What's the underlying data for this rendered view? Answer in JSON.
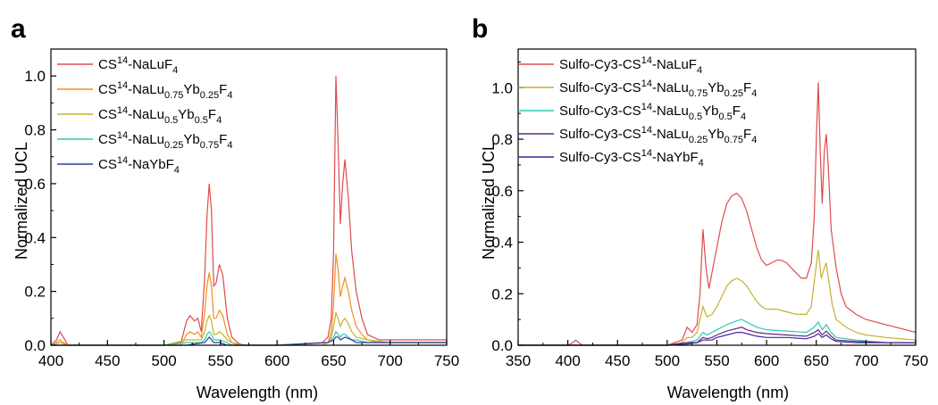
{
  "chart_data": [
    {
      "type": "line",
      "panel_label": "a",
      "xlabel": "Wavelength (nm)",
      "ylabel": "Normalized UCL",
      "xlim": [
        400,
        750
      ],
      "ylim": [
        0,
        1.1
      ],
      "xticks": [
        "400",
        "450",
        "500",
        "550",
        "600",
        "650",
        "700",
        "750"
      ],
      "yticks": [
        "0.0",
        "0.2",
        "0.4",
        "0.6",
        "0.8",
        "1.0"
      ],
      "legend_position": "top-left",
      "series": [
        {
          "name": "CS14-NaLuF4",
          "legend": {
            "pre": "CS",
            "sup1": "14",
            "mid": "-NaLuF",
            "sub1": "4",
            "mid2": "",
            "sub2": "",
            "post": ""
          },
          "color": "#e04b4b",
          "x": [
            400,
            405,
            408,
            411,
            415,
            450,
            500,
            515,
            520,
            523,
            527,
            530,
            533,
            536,
            538,
            540,
            542,
            544,
            546,
            549,
            552,
            556,
            560,
            565,
            570,
            600,
            640,
            645,
            648,
            650,
            652,
            654,
            656,
            658,
            660,
            663,
            666,
            670,
            675,
            680,
            690,
            700,
            720,
            750
          ],
          "y": [
            0.0,
            0.02,
            0.05,
            0.03,
            0.0,
            0.0,
            0.0,
            0.01,
            0.09,
            0.11,
            0.09,
            0.1,
            0.05,
            0.25,
            0.48,
            0.6,
            0.5,
            0.22,
            0.23,
            0.3,
            0.26,
            0.1,
            0.03,
            0.01,
            0.0,
            0.0,
            0.01,
            0.03,
            0.1,
            0.35,
            1.0,
            0.75,
            0.45,
            0.6,
            0.69,
            0.55,
            0.35,
            0.2,
            0.1,
            0.04,
            0.02,
            0.02,
            0.02,
            0.02
          ]
        },
        {
          "name": "CS14-NaLu0.75Yb0.25F4",
          "legend": {
            "pre": "CS",
            "sup1": "14",
            "mid": "-NaLu",
            "sub1": "0.75",
            "mid2": "Yb",
            "sub2": "0.25",
            "post": "F4"
          },
          "color": "#f0901e",
          "x": [
            400,
            405,
            408,
            411,
            415,
            450,
            500,
            515,
            520,
            523,
            527,
            530,
            533,
            536,
            538,
            540,
            542,
            544,
            546,
            549,
            552,
            556,
            560,
            565,
            570,
            600,
            640,
            645,
            648,
            650,
            652,
            654,
            656,
            658,
            660,
            663,
            666,
            670,
            675,
            680,
            690,
            700,
            720,
            750
          ],
          "y": [
            0.0,
            0.01,
            0.02,
            0.01,
            0.0,
            0.0,
            0.0,
            0.0,
            0.04,
            0.05,
            0.04,
            0.05,
            0.03,
            0.12,
            0.22,
            0.27,
            0.22,
            0.1,
            0.1,
            0.13,
            0.11,
            0.04,
            0.01,
            0.0,
            0.0,
            0.0,
            0.0,
            0.01,
            0.05,
            0.15,
            0.34,
            0.28,
            0.18,
            0.22,
            0.25,
            0.2,
            0.13,
            0.07,
            0.04,
            0.02,
            0.01,
            0.01,
            0.01,
            0.01
          ]
        },
        {
          "name": "CS14-NaLu0.5Yb0.5F4",
          "legend": {
            "pre": "CS",
            "sup1": "14",
            "mid": "-NaLu",
            "sub1": "0.5",
            "mid2": "Yb",
            "sub2": "0.5",
            "post": "F4"
          },
          "color": "#c4b12e",
          "x": [
            400,
            408,
            415,
            450,
            500,
            520,
            527,
            533,
            536,
            538,
            540,
            542,
            544,
            546,
            549,
            552,
            556,
            560,
            570,
            600,
            645,
            648,
            650,
            652,
            654,
            656,
            658,
            660,
            663,
            666,
            670,
            680,
            700,
            750
          ],
          "y": [
            0.0,
            0.01,
            0.0,
            0.0,
            0.0,
            0.02,
            0.02,
            0.02,
            0.05,
            0.09,
            0.11,
            0.09,
            0.04,
            0.04,
            0.05,
            0.04,
            0.02,
            0.01,
            0.0,
            0.0,
            0.01,
            0.03,
            0.07,
            0.12,
            0.1,
            0.07,
            0.09,
            0.1,
            0.08,
            0.05,
            0.03,
            0.02,
            0.01,
            0.01
          ]
        },
        {
          "name": "CS14-NaLu0.25Yb0.75F4",
          "legend": {
            "pre": "CS",
            "sup1": "14",
            "mid": "-NaLu",
            "sub1": "0.25",
            "mid2": "Yb",
            "sub2": "0.75",
            "post": "F4"
          },
          "color": "#2fc8b0",
          "x": [
            400,
            450,
            500,
            520,
            533,
            536,
            538,
            540,
            542,
            544,
            549,
            556,
            560,
            570,
            600,
            645,
            648,
            650,
            652,
            654,
            656,
            658,
            660,
            663,
            666,
            670,
            680,
            700,
            750
          ],
          "y": [
            0.0,
            0.0,
            0.0,
            0.01,
            0.01,
            0.02,
            0.04,
            0.05,
            0.04,
            0.02,
            0.02,
            0.01,
            0.0,
            0.0,
            0.0,
            0.01,
            0.02,
            0.03,
            0.05,
            0.04,
            0.03,
            0.04,
            0.04,
            0.03,
            0.02,
            0.02,
            0.01,
            0.01,
            0.01
          ]
        },
        {
          "name": "CS14-NaYbF4",
          "legend": {
            "pre": "CS",
            "sup1": "14",
            "mid": "-NaYbF",
            "sub1": "4",
            "mid2": "",
            "sub2": "",
            "post": ""
          },
          "color": "#2a3f9d",
          "x": [
            400,
            450,
            500,
            520,
            536,
            538,
            540,
            542,
            544,
            549,
            556,
            570,
            600,
            645,
            650,
            652,
            654,
            656,
            660,
            666,
            670,
            680,
            700,
            750
          ],
          "y": [
            0.0,
            0.0,
            0.0,
            0.0,
            0.01,
            0.02,
            0.03,
            0.02,
            0.01,
            0.01,
            0.0,
            0.0,
            0.0,
            0.01,
            0.02,
            0.03,
            0.03,
            0.02,
            0.03,
            0.02,
            0.01,
            0.01,
            0.01,
            0.01
          ]
        }
      ]
    },
    {
      "type": "line",
      "panel_label": "b",
      "xlabel": "Wavelength (nm)",
      "ylabel": "Normalized UCL",
      "xlim": [
        350,
        750
      ],
      "ylim": [
        0,
        1.15
      ],
      "xticks": [
        "350",
        "400",
        "450",
        "500",
        "550",
        "600",
        "650",
        "700",
        "750"
      ],
      "yticks": [
        "0.0",
        "0.2",
        "0.4",
        "0.6",
        "0.8",
        "1.0"
      ],
      "legend_position": "top-left",
      "series": [
        {
          "name": "Sulfo-Cy3-CS14-NaLuF4",
          "legend": {
            "pre": "Sulfo-Cy3-CS",
            "sup1": "14",
            "mid": "-NaLuF",
            "sub1": "4",
            "mid2": "",
            "sub2": "",
            "post": ""
          },
          "color": "#e04b4b",
          "x": [
            350,
            400,
            405,
            408,
            411,
            415,
            450,
            500,
            515,
            520,
            525,
            530,
            533,
            536,
            539,
            542,
            545,
            550,
            555,
            560,
            565,
            570,
            575,
            580,
            585,
            590,
            595,
            600,
            605,
            610,
            615,
            620,
            625,
            630,
            635,
            640,
            645,
            648,
            650,
            652,
            654,
            656,
            658,
            660,
            662,
            665,
            670,
            675,
            680,
            690,
            700,
            720,
            750
          ],
          "y": [
            0.0,
            0.0,
            0.01,
            0.02,
            0.01,
            0.0,
            0.0,
            0.0,
            0.02,
            0.07,
            0.05,
            0.08,
            0.2,
            0.45,
            0.3,
            0.22,
            0.28,
            0.38,
            0.48,
            0.55,
            0.58,
            0.59,
            0.57,
            0.52,
            0.45,
            0.38,
            0.33,
            0.31,
            0.32,
            0.33,
            0.33,
            0.32,
            0.3,
            0.28,
            0.26,
            0.26,
            0.32,
            0.5,
            0.8,
            1.02,
            0.75,
            0.55,
            0.75,
            0.82,
            0.7,
            0.45,
            0.3,
            0.2,
            0.15,
            0.12,
            0.1,
            0.08,
            0.05
          ]
        },
        {
          "name": "Sulfo-Cy3-CS14-NaLu0.75Yb0.25F4",
          "legend": {
            "pre": "Sulfo-Cy3-CS",
            "sup1": "14",
            "mid": "-NaLu",
            "sub1": "0.75",
            "mid2": "Yb",
            "sub2": "0.25",
            "post": "F4"
          },
          "color": "#c4b12e",
          "x": [
            350,
            400,
            450,
            500,
            515,
            520,
            525,
            530,
            536,
            540,
            545,
            550,
            555,
            560,
            565,
            570,
            575,
            580,
            585,
            590,
            595,
            600,
            610,
            620,
            630,
            640,
            645,
            648,
            652,
            655,
            658,
            660,
            663,
            666,
            670,
            680,
            690,
            700,
            720,
            750
          ],
          "y": [
            0.0,
            0.0,
            0.0,
            0.0,
            0.01,
            0.03,
            0.03,
            0.05,
            0.15,
            0.11,
            0.12,
            0.15,
            0.19,
            0.23,
            0.25,
            0.26,
            0.25,
            0.23,
            0.2,
            0.17,
            0.15,
            0.14,
            0.14,
            0.13,
            0.12,
            0.12,
            0.15,
            0.25,
            0.37,
            0.26,
            0.3,
            0.32,
            0.24,
            0.16,
            0.1,
            0.07,
            0.05,
            0.04,
            0.03,
            0.02
          ]
        },
        {
          "name": "Sulfo-Cy3-CS14-NaLu0.5Yb0.5F4",
          "legend": {
            "pre": "Sulfo-Cy3-CS",
            "sup1": "14",
            "mid": "-NaLu",
            "sub1": "0.5",
            "mid2": "Yb",
            "sub2": "0.5",
            "post": "F4"
          },
          "color": "#2fc8b0",
          "x": [
            350,
            450,
            500,
            520,
            530,
            536,
            540,
            545,
            550,
            560,
            570,
            575,
            580,
            590,
            600,
            620,
            640,
            648,
            652,
            656,
            660,
            665,
            670,
            690,
            720,
            750
          ],
          "y": [
            0.0,
            0.0,
            0.0,
            0.01,
            0.02,
            0.05,
            0.04,
            0.05,
            0.06,
            0.08,
            0.095,
            0.1,
            0.09,
            0.07,
            0.06,
            0.055,
            0.05,
            0.07,
            0.09,
            0.06,
            0.08,
            0.05,
            0.03,
            0.02,
            0.01,
            0.01
          ]
        },
        {
          "name": "Sulfo-Cy3-CS14-NaLu0.25Yb0.75F4",
          "legend": {
            "pre": "Sulfo-Cy3-CS",
            "sup1": "14",
            "mid": "-NaLu",
            "sub1": "0.25",
            "mid2": "Yb",
            "sub2": "0.75",
            "post": "F4"
          },
          "color": "#5a2d82",
          "x": [
            350,
            450,
            500,
            520,
            530,
            536,
            540,
            545,
            550,
            560,
            570,
            575,
            580,
            590,
            600,
            620,
            640,
            648,
            652,
            656,
            660,
            665,
            670,
            690,
            720,
            750
          ],
          "y": [
            0.0,
            0.0,
            0.0,
            0.01,
            0.01,
            0.03,
            0.025,
            0.03,
            0.04,
            0.055,
            0.065,
            0.07,
            0.06,
            0.05,
            0.045,
            0.04,
            0.035,
            0.05,
            0.06,
            0.04,
            0.055,
            0.035,
            0.02,
            0.015,
            0.01,
            0.01
          ]
        },
        {
          "name": "Sulfo-Cy3-CS14-NaYbF4",
          "legend": {
            "pre": "Sulfo-Cy3-CS",
            "sup1": "14",
            "mid": "-NaYbF",
            "sub1": "4",
            "mid2": "",
            "sub2": "",
            "post": ""
          },
          "color": "#4b1ea0",
          "x": [
            350,
            450,
            500,
            520,
            530,
            536,
            540,
            545,
            550,
            560,
            570,
            575,
            580,
            590,
            600,
            620,
            640,
            648,
            652,
            656,
            660,
            665,
            670,
            690,
            720,
            750
          ],
          "y": [
            0.0,
            0.0,
            0.0,
            0.005,
            0.01,
            0.02,
            0.02,
            0.02,
            0.03,
            0.04,
            0.05,
            0.05,
            0.045,
            0.035,
            0.03,
            0.03,
            0.025,
            0.035,
            0.045,
            0.03,
            0.04,
            0.025,
            0.015,
            0.01,
            0.01,
            0.01
          ]
        }
      ]
    }
  ]
}
